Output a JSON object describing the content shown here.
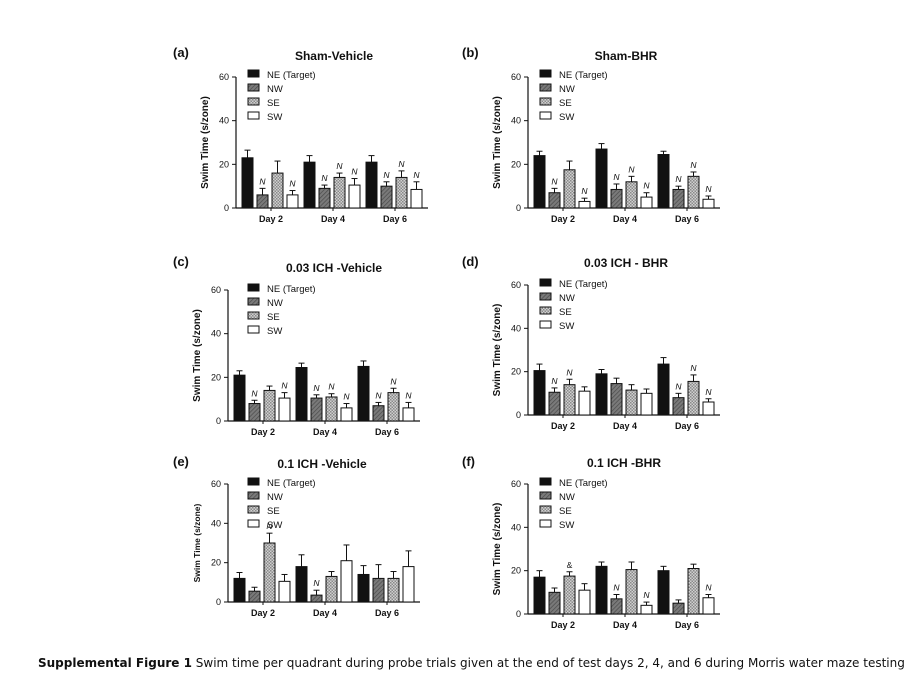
{
  "caption": {
    "label": "Supplemental Figure 1",
    "text": " Swim time per quadrant during probe trials given at the end of test days 2, 4, and 6 during Morris water maze testing"
  },
  "patterns": {
    "NE (Target)": "solid-black",
    "NW": "dark-gray-diagonal",
    "SE": "light-gray-checker",
    "SW": "white"
  },
  "chart_data": [
    {
      "id": "a",
      "panel": "(a)",
      "type": "bar",
      "title": "Sham-Vehicle",
      "ylabel": "Swim Time  (s/zone)",
      "ylim": [
        0,
        60
      ],
      "yticks": [
        0,
        20,
        40,
        60
      ],
      "categories": [
        "Day 2",
        "Day 4",
        "Day 6"
      ],
      "legend": [
        "NE  (Target)",
        "NW",
        "SE",
        "SW"
      ],
      "series": [
        {
          "name": "NE (Target)",
          "values": [
            23,
            21,
            21
          ],
          "errors": [
            3.5,
            3,
            3
          ],
          "marks": [
            "",
            "",
            ""
          ]
        },
        {
          "name": "NW",
          "values": [
            6,
            9,
            10
          ],
          "errors": [
            3,
            1.5,
            2
          ],
          "marks": [
            "N",
            "N",
            "N"
          ]
        },
        {
          "name": "SE",
          "values": [
            16,
            14,
            14
          ],
          "errors": [
            5.5,
            2,
            3
          ],
          "marks": [
            "",
            "N",
            "N"
          ]
        },
        {
          "name": "SW",
          "values": [
            6,
            10.5,
            8.5
          ],
          "errors": [
            2,
            3,
            3.5
          ],
          "marks": [
            "N",
            "N",
            "N"
          ]
        }
      ]
    },
    {
      "id": "b",
      "panel": "(b)",
      "type": "bar",
      "title": "Sham-BHR",
      "ylabel": "Swim Time  (s/zone)",
      "ylim": [
        0,
        60
      ],
      "yticks": [
        0,
        20,
        40,
        60
      ],
      "categories": [
        "Day 2",
        "Day 4",
        "Day 6"
      ],
      "legend": [
        "NE  (Target)",
        "NW",
        "SE",
        "SW"
      ],
      "series": [
        {
          "name": "NE (Target)",
          "values": [
            24,
            27,
            24.5
          ],
          "errors": [
            2,
            2.5,
            1.5
          ],
          "marks": [
            "",
            "",
            ""
          ]
        },
        {
          "name": "NW",
          "values": [
            7,
            8.5,
            8.5
          ],
          "errors": [
            2,
            2.5,
            1.5
          ],
          "marks": [
            "N",
            "N",
            "N"
          ]
        },
        {
          "name": "SE",
          "values": [
            17.5,
            12,
            14.5
          ],
          "errors": [
            4,
            2.5,
            2
          ],
          "marks": [
            "",
            "N",
            "N"
          ]
        },
        {
          "name": "SW",
          "values": [
            3,
            5,
            4
          ],
          "errors": [
            1.5,
            2,
            1.5
          ],
          "marks": [
            "N",
            "N",
            "N"
          ]
        }
      ]
    },
    {
      "id": "c",
      "panel": "(c)",
      "type": "bar",
      "title": "0.03 ICH -Vehicle",
      "ylabel": "Swim Time  (s/zone)",
      "ylim": [
        0,
        60
      ],
      "yticks": [
        0,
        20,
        40,
        60
      ],
      "categories": [
        "Day 2",
        "Day 4",
        "Day 6"
      ],
      "legend": [
        "NE  (Target)",
        "NW",
        "SE",
        "SW"
      ],
      "series": [
        {
          "name": "NE (Target)",
          "values": [
            21,
            24.5,
            25
          ],
          "errors": [
            2,
            2,
            2.5
          ],
          "marks": [
            "",
            "",
            ""
          ]
        },
        {
          "name": "NW",
          "values": [
            8,
            10.5,
            7
          ],
          "errors": [
            1.5,
            1.5,
            1.5
          ],
          "marks": [
            "N",
            "N",
            "N"
          ]
        },
        {
          "name": "SE",
          "values": [
            14,
            11,
            13
          ],
          "errors": [
            2,
            1.5,
            2
          ],
          "marks": [
            "",
            "N",
            "N"
          ]
        },
        {
          "name": "SW",
          "values": [
            10.5,
            6,
            6
          ],
          "errors": [
            2.5,
            2,
            2.5
          ],
          "marks": [
            "N",
            "N",
            "N"
          ]
        }
      ]
    },
    {
      "id": "d",
      "panel": "(d)",
      "type": "bar",
      "title": "0.03 ICH - BHR",
      "ylabel": "Swim Time  (s/zone)",
      "ylim": [
        0,
        60
      ],
      "yticks": [
        0,
        20,
        40,
        60
      ],
      "categories": [
        "Day 2",
        "Day 4",
        "Day 6"
      ],
      "legend": [
        "NE  (Target)",
        "NW",
        "SE",
        "SW"
      ],
      "series": [
        {
          "name": "NE (Target)",
          "values": [
            20.5,
            19,
            23.5
          ],
          "errors": [
            3,
            2,
            3
          ],
          "marks": [
            "",
            "",
            ""
          ]
        },
        {
          "name": "NW",
          "values": [
            10.5,
            14.5,
            8
          ],
          "errors": [
            2,
            2.5,
            2
          ],
          "marks": [
            "N",
            "",
            "N"
          ]
        },
        {
          "name": "SE",
          "values": [
            14,
            11.5,
            15.5
          ],
          "errors": [
            2.5,
            2.5,
            3
          ],
          "marks": [
            "N",
            "",
            "N"
          ]
        },
        {
          "name": "SW",
          "values": [
            11,
            10,
            6
          ],
          "errors": [
            2,
            2,
            1.5
          ],
          "marks": [
            "",
            "",
            "N"
          ]
        }
      ]
    },
    {
      "id": "e",
      "panel": "(e)",
      "type": "bar",
      "title": "0.1 ICH -Vehicle",
      "ylabel": "Swim Time (s/zone)",
      "ylim": [
        0,
        60
      ],
      "yticks": [
        0,
        20,
        40,
        60
      ],
      "categories": [
        "Day 2",
        "Day 4",
        "Day 6"
      ],
      "legend": [
        "NE (Target)",
        "NW",
        "SE",
        "SW"
      ],
      "series": [
        {
          "name": "NE (Target)",
          "values": [
            12,
            18,
            14
          ],
          "errors": [
            3,
            6,
            4.5
          ],
          "marks": [
            "",
            "",
            ""
          ]
        },
        {
          "name": "NW",
          "values": [
            5.5,
            3.5,
            12
          ],
          "errors": [
            2,
            2.5,
            7
          ],
          "marks": [
            "",
            "N",
            ""
          ]
        },
        {
          "name": "SE",
          "values": [
            30,
            13,
            12
          ],
          "errors": [
            5,
            2.5,
            3.5
          ],
          "marks": [
            "N",
            "",
            ""
          ]
        },
        {
          "name": "SW",
          "values": [
            10.5,
            21,
            18
          ],
          "errors": [
            3.5,
            8,
            8
          ],
          "marks": [
            "",
            "",
            ""
          ]
        }
      ]
    },
    {
      "id": "f",
      "panel": "(f)",
      "type": "bar",
      "title": "0.1 ICH -BHR",
      "ylabel": "Swim Time  (s/zone)",
      "ylim": [
        0,
        60
      ],
      "yticks": [
        0,
        20,
        40,
        60
      ],
      "categories": [
        "Day 2",
        "Day 4",
        "Day 6"
      ],
      "legend": [
        "NE  (Target)",
        "NW",
        "SE",
        "SW"
      ],
      "series": [
        {
          "name": "NE (Target)",
          "values": [
            17,
            22,
            20
          ],
          "errors": [
            3,
            2,
            2
          ],
          "marks": [
            "",
            "",
            ""
          ]
        },
        {
          "name": "NW",
          "values": [
            10,
            7,
            5
          ],
          "errors": [
            2,
            2,
            1.5
          ],
          "marks": [
            "",
            "N",
            ""
          ]
        },
        {
          "name": "SE",
          "values": [
            17.5,
            20.5,
            21
          ],
          "errors": [
            2,
            3.5,
            2
          ],
          "marks": [
            "&",
            "",
            ""
          ]
        },
        {
          "name": "SW",
          "values": [
            11,
            4,
            7.5
          ],
          "errors": [
            3,
            1.5,
            1.5
          ],
          "marks": [
            "",
            "N",
            "N"
          ]
        }
      ]
    }
  ]
}
